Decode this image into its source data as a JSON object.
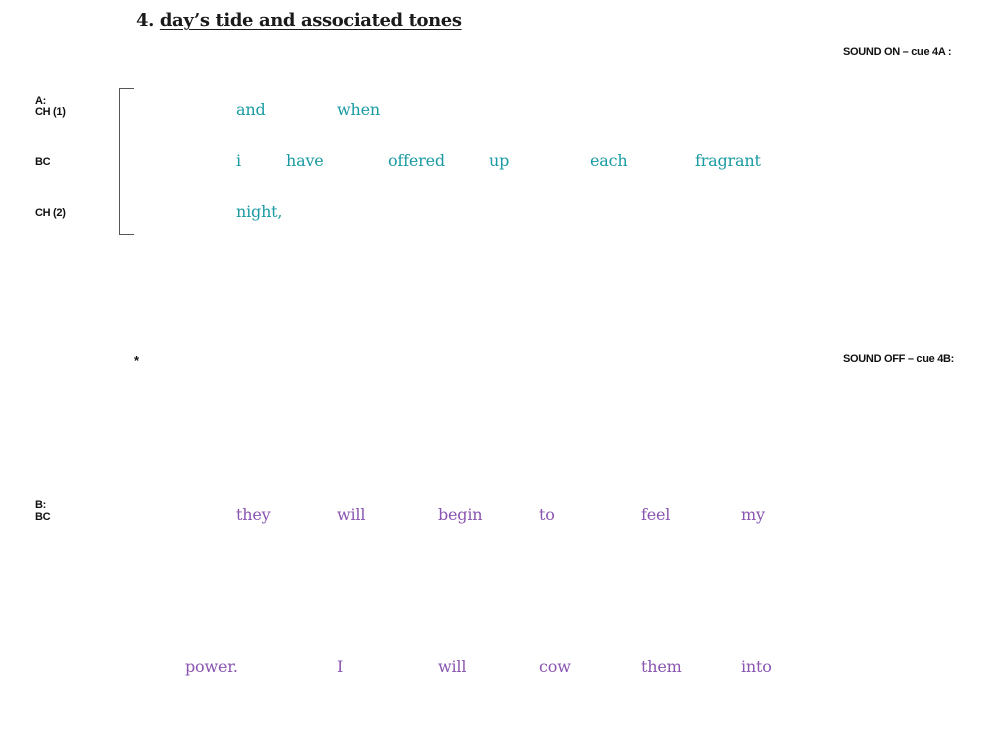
{
  "heading": {
    "number": "4.",
    "title": "day’s tide and associated tones"
  },
  "cues": {
    "sound_on": "SOUND ON – cue 4A :",
    "sound_off": "SOUND OFF – cue 4B:"
  },
  "section_a": {
    "marker": "A:",
    "roles": {
      "ch1": "CH (1)",
      "bc": "BC",
      "ch2": "CH (2)"
    },
    "ch1_words": [
      "and",
      "when"
    ],
    "bc_words": [
      "i",
      "have",
      "offered",
      "up",
      "each",
      "fragrant"
    ],
    "ch2_words": [
      "night,"
    ]
  },
  "asterisk": "*",
  "section_b": {
    "marker": "B:",
    "role": "BC",
    "line1_words": [
      "they",
      "will",
      "begin",
      "to",
      "feel",
      "my"
    ],
    "line2_words": [
      "power.",
      "I",
      "will",
      "cow",
      "them",
      "into"
    ]
  },
  "colors": {
    "section_a_text": "#1a9ba3",
    "section_b_text": "#8a55b0"
  }
}
